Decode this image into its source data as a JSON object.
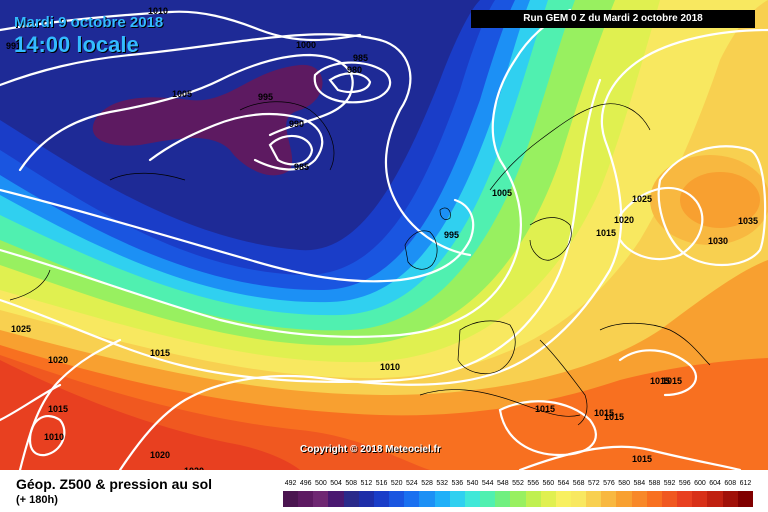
{
  "header": {
    "date": "Mardi 9 octobre 2018",
    "time": "14:00 locale",
    "run": "Run GEM 0 Z du Mardi 2 octobre 2018"
  },
  "copyright": "Copyright © 2018 Meteociel.fr",
  "legend": {
    "title": "Géop. Z500 & pression au sol",
    "subtitle": "(+ 180h)",
    "values": [
      "492",
      "496",
      "500",
      "504",
      "508",
      "512",
      "516",
      "520",
      "524",
      "528",
      "532",
      "536",
      "540",
      "544",
      "548",
      "552",
      "556",
      "560",
      "564",
      "568",
      "572",
      "576",
      "580",
      "584",
      "588",
      "592",
      "596",
      "600",
      "604",
      "608",
      "612"
    ],
    "colors": [
      "#4b1550",
      "#5d1a61",
      "#6f2772",
      "#4a1870",
      "#2a2a8a",
      "#1e2ea8",
      "#1a3dc8",
      "#1a55e0",
      "#1a70f0",
      "#1c90f5",
      "#20b0f8",
      "#30d0f0",
      "#40e8d8",
      "#50f0b0",
      "#70f080",
      "#98f060",
      "#c0f050",
      "#e0f050",
      "#f8f060",
      "#f8e860",
      "#f8d050",
      "#f8b840",
      "#f8a030",
      "#f88828",
      "#f87020",
      "#f05820",
      "#e84020",
      "#d83018",
      "#c02010",
      "#a01008",
      "#800000"
    ]
  },
  "isobars": [
    {
      "label": "1010"
    },
    {
      "label": "1000"
    },
    {
      "label": "985"
    },
    {
      "label": "980"
    },
    {
      "label": "1005"
    },
    {
      "label": "995"
    },
    {
      "label": "990"
    },
    {
      "label": "985"
    },
    {
      "label": "991"
    },
    {
      "label": "995"
    },
    {
      "label": "1005"
    },
    {
      "label": "1025"
    },
    {
      "label": "1020"
    },
    {
      "label": "1015"
    },
    {
      "label": "1035"
    },
    {
      "label": "1030"
    },
    {
      "label": "1025"
    },
    {
      "label": "1020"
    },
    {
      "label": "1015"
    },
    {
      "label": "1010"
    },
    {
      "label": "1015"
    },
    {
      "label": "1015"
    },
    {
      "label": "1010"
    },
    {
      "label": "1015"
    },
    {
      "label": "1020"
    },
    {
      "label": "1020"
    },
    {
      "label": "1015"
    },
    {
      "label": "1015"
    },
    {
      "label": "1015"
    },
    {
      "label": "1015"
    }
  ]
}
